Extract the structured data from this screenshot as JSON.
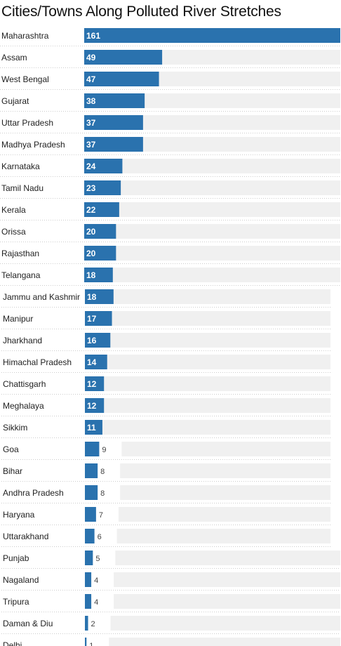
{
  "chart_data": {
    "type": "bar",
    "orientation": "horizontal",
    "title": "Cities/Towns Along Polluted River Stretches",
    "xlabel": "",
    "ylabel": "",
    "xlim": [
      0,
      161
    ],
    "grid": false,
    "legend": "none",
    "bar_color": "#2a72ae",
    "track_color": "#f0f0f0",
    "categories": [
      "Maharashtra",
      "Assam",
      "West Bengal",
      "Gujarat",
      "Uttar Pradesh",
      "Madhya Pradesh",
      "Karnataka",
      "Tamil Nadu",
      "Kerala",
      "Orissa",
      "Rajasthan",
      "Telangana",
      "Jammu and Kashmir",
      "Manipur",
      "Jharkhand",
      "Himachal Pradesh",
      "Chattisgarh",
      "Meghalaya",
      "Sikkim",
      "Goa",
      "Bihar",
      "Andhra Pradesh",
      "Haryana",
      "Uttarakhand",
      "Punjab",
      "Nagaland",
      "Tripura",
      "Daman & Diu",
      "Delhi"
    ],
    "values": [
      161,
      49,
      47,
      38,
      37,
      37,
      24,
      23,
      22,
      20,
      20,
      18,
      18,
      17,
      16,
      14,
      12,
      12,
      11,
      9,
      8,
      8,
      7,
      6,
      5,
      4,
      4,
      2,
      1
    ]
  }
}
